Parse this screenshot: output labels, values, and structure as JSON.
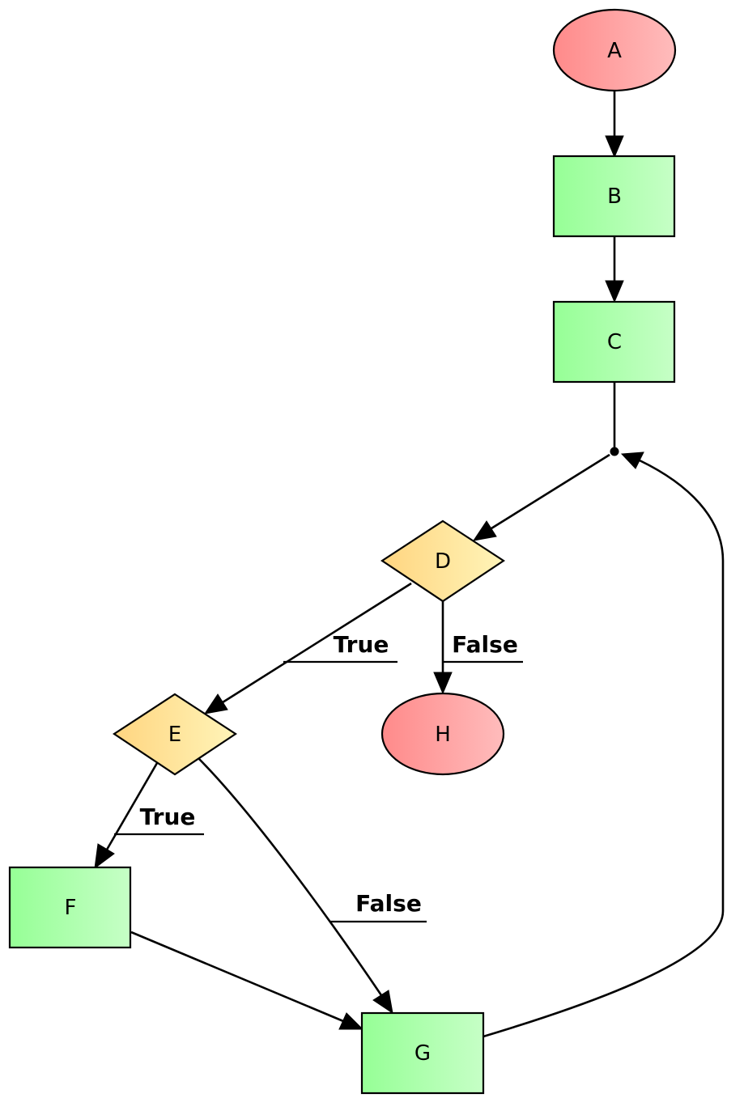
{
  "nodes": {
    "a": {
      "label": "A",
      "shape": "ellipse",
      "color": "#ff8a8a"
    },
    "b": {
      "label": "B",
      "shape": "box",
      "color": "#9cff9c"
    },
    "c": {
      "label": "C",
      "shape": "box",
      "color": "#9cff9c"
    },
    "d": {
      "label": "D",
      "shape": "diamond",
      "color": "#ffd580"
    },
    "e": {
      "label": "E",
      "shape": "diamond",
      "color": "#ffd580"
    },
    "f": {
      "label": "F",
      "shape": "box",
      "color": "#9cff9c"
    },
    "g": {
      "label": "G",
      "shape": "box",
      "color": "#9cff9c"
    },
    "h": {
      "label": "H",
      "shape": "ellipse",
      "color": "#ff8a8a"
    }
  },
  "edges": {
    "d_e": {
      "from": "D",
      "to": "E",
      "label": "True"
    },
    "d_h": {
      "from": "D",
      "to": "H",
      "label": "False"
    },
    "e_f": {
      "from": "E",
      "to": "F",
      "label": "True"
    },
    "e_g": {
      "from": "E",
      "to": "G",
      "label": "False"
    },
    "a_b": {
      "from": "A",
      "to": "B",
      "label": ""
    },
    "b_c": {
      "from": "B",
      "to": "C",
      "label": ""
    },
    "c_junction": {
      "from": "C",
      "to": "junction",
      "label": ""
    },
    "junction_d": {
      "from": "junction",
      "to": "D",
      "label": ""
    },
    "f_g": {
      "from": "F",
      "to": "G",
      "label": ""
    },
    "g_junction": {
      "from": "G",
      "to": "junction",
      "label": ""
    }
  }
}
